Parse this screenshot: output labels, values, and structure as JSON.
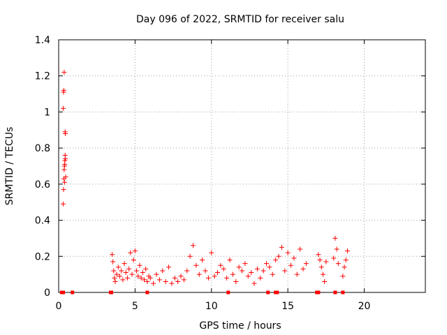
{
  "chart_data": {
    "type": "scatter",
    "title": "Day 096 of 2022, SRMTID for receiver salu",
    "xlabel": "GPS time / hours",
    "ylabel": "SRMTID / TECUs",
    "xlim": [
      0,
      24
    ],
    "ylim": [
      0,
      1.4
    ],
    "xticks": [
      0,
      5,
      10,
      15,
      20
    ],
    "xtick_labels": [
      "0",
      "5",
      "10",
      "15",
      "20"
    ],
    "yticks": [
      0,
      0.2,
      0.4,
      0.6,
      0.8,
      1.0,
      1.2,
      1.4
    ],
    "ytick_labels": [
      "0",
      "0.2",
      "0.4",
      "0.6",
      "0.8",
      "1",
      "1.2",
      "1.4"
    ],
    "grid": true,
    "marker": "+",
    "series_color": "#ff0000",
    "series": [
      {
        "name": "SRMTID",
        "x": [
          0.3,
          0.32,
          0.34,
          0.36,
          0.38,
          0.4,
          0.42,
          0.44,
          0.3,
          0.32,
          0.34,
          0.36,
          0.38,
          0.4,
          0.42,
          0.44,
          0.46,
          3.5,
          3.55,
          3.6,
          3.65,
          3.7,
          3.8,
          3.9,
          4.0,
          4.1,
          4.2,
          4.3,
          4.4,
          4.5,
          4.6,
          4.7,
          4.8,
          4.9,
          5.0,
          5.1,
          5.2,
          5.3,
          5.4,
          5.5,
          5.6,
          5.7,
          5.8,
          5.9,
          6.0,
          6.2,
          6.4,
          6.6,
          6.8,
          7.0,
          7.2,
          7.4,
          7.6,
          7.8,
          8.0,
          8.2,
          8.4,
          8.6,
          8.8,
          9.0,
          9.2,
          9.4,
          9.6,
          9.8,
          10.0,
          10.2,
          10.4,
          10.6,
          10.8,
          11.0,
          11.2,
          11.4,
          11.6,
          11.8,
          12.0,
          12.2,
          12.4,
          12.6,
          12.8,
          13.0,
          13.2,
          13.4,
          13.6,
          13.8,
          14.0,
          14.2,
          14.4,
          14.6,
          14.8,
          15.0,
          15.2,
          15.4,
          15.6,
          15.8,
          16.0,
          16.2,
          17.0,
          17.1,
          17.2,
          17.3,
          17.4,
          17.5,
          18.0,
          18.1,
          18.2,
          18.3,
          18.6,
          18.7,
          18.8,
          18.9
        ],
        "y": [
          0.49,
          0.57,
          0.63,
          0.68,
          0.7,
          0.73,
          0.76,
          0.88,
          1.02,
          1.11,
          1.12,
          1.22,
          0.61,
          0.71,
          0.89,
          0.74,
          0.64,
          0.21,
          0.17,
          0.12,
          0.08,
          0.06,
          0.1,
          0.14,
          0.09,
          0.12,
          0.07,
          0.16,
          0.11,
          0.08,
          0.13,
          0.22,
          0.1,
          0.18,
          0.23,
          0.12,
          0.09,
          0.15,
          0.08,
          0.11,
          0.07,
          0.13,
          0.06,
          0.09,
          0.08,
          0.05,
          0.1,
          0.07,
          0.12,
          0.06,
          0.14,
          0.05,
          0.08,
          0.06,
          0.09,
          0.07,
          0.12,
          0.2,
          0.26,
          0.15,
          0.1,
          0.18,
          0.12,
          0.08,
          0.22,
          0.09,
          0.11,
          0.15,
          0.13,
          0.08,
          0.18,
          0.1,
          0.06,
          0.14,
          0.12,
          0.16,
          0.09,
          0.11,
          0.05,
          0.13,
          0.08,
          0.12,
          0.16,
          0.14,
          0.1,
          0.18,
          0.2,
          0.25,
          0.12,
          0.22,
          0.15,
          0.19,
          0.1,
          0.24,
          0.13,
          0.16,
          0.21,
          0.18,
          0.14,
          0.1,
          0.06,
          0.17,
          0.19,
          0.3,
          0.24,
          0.16,
          0.09,
          0.14,
          0.18,
          0.23
        ]
      }
    ],
    "gap_markers_x": [
      0.2,
      0.3,
      0.9,
      3.4,
      3.45,
      5.8,
      11.1,
      13.7,
      14.2,
      14.3,
      16.9,
      17.0,
      18.1,
      18.6
    ]
  }
}
